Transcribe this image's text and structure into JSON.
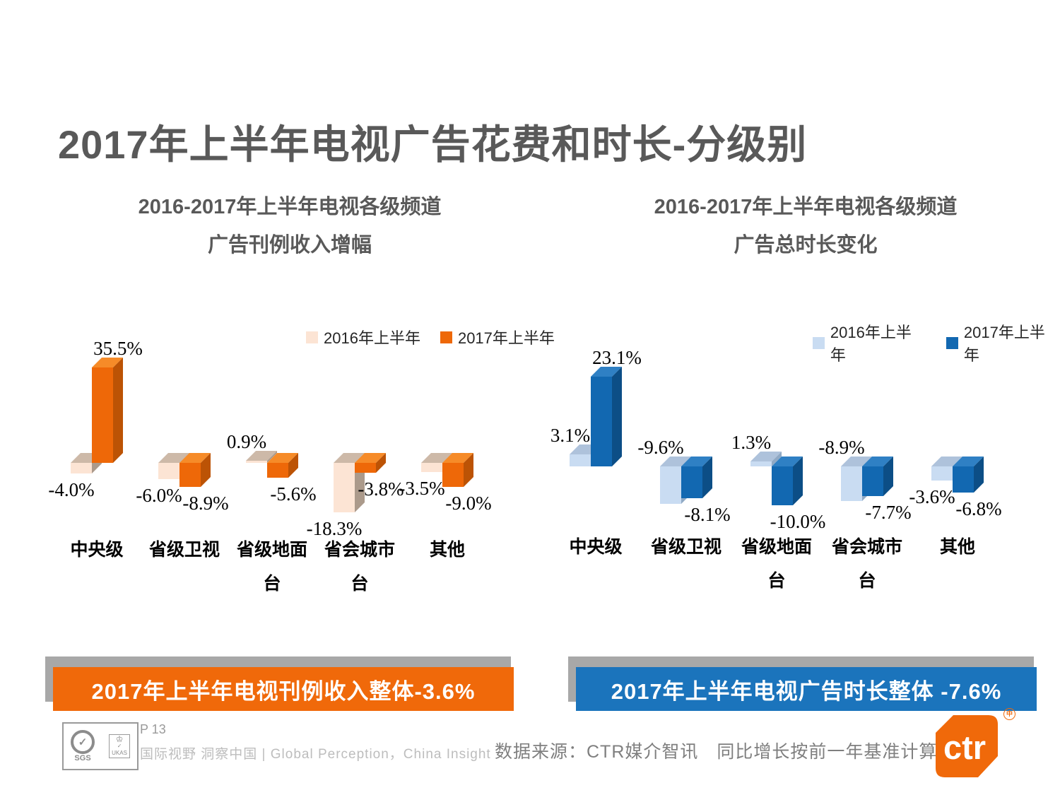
{
  "slide": {
    "title": "2017年上半年电视广告花费和时长-分级别",
    "page_label": "P 13",
    "tagline": "国际视野  洞察中国 | Global Perception，China Insight",
    "source_note": "数据来源：CTR媒介智讯　同比增长按前一年基准计算",
    "logo_text": "ctr",
    "logo_mark": "中",
    "cert": {
      "sgs": "SGS",
      "ukas": "UKAS",
      "sgs_check": "✓",
      "ukas_crown": "♔",
      "ukas_check": "✓"
    }
  },
  "colors": {
    "title_gray": "#595959",
    "banner_shadow": "#a8a8a8",
    "accent_orange": "#f0690a",
    "accent_blue": "#1b74bc",
    "logo_orange": "#f0690a"
  },
  "chart_data": [
    {
      "type": "bar",
      "title_line1": "2016-2017年上半年电视各级频道",
      "title_line2": "广告刊例收入增幅",
      "title": "2016-2017年上半年电视各级频道广告刊例收入增幅",
      "unit": "%",
      "grid": false,
      "axes_visible": false,
      "legend_position": "top-right",
      "style": "3d-clustered-column",
      "categories": [
        "中央级",
        "省级卫视",
        "省级地面台",
        "省会城市台",
        "其他"
      ],
      "categories_display": [
        [
          "中央级"
        ],
        [
          "省级卫视"
        ],
        [
          "省级地面",
          "台"
        ],
        [
          "省会城市",
          "台"
        ],
        [
          "其他"
        ]
      ],
      "series": [
        {
          "name": "2016年上半年",
          "values": [
            -4.0,
            -6.0,
            0.9,
            -18.3,
            -3.5
          ],
          "labels": [
            "-4.0%",
            "-6.0%",
            "0.9%",
            "-18.3%",
            "-3.5%"
          ],
          "label_side": [
            "below",
            "below",
            "above",
            "below",
            "below"
          ],
          "color_front": "#fce4d4",
          "color_top": "#cdb9a8",
          "color_side": "#ab9a8b"
        },
        {
          "name": "2017年上半年",
          "values": [
            35.5,
            -8.9,
            -5.6,
            -3.8,
            -9.0
          ],
          "labels": [
            "35.5%",
            "-8.9%",
            "-5.6%",
            "-3.8%",
            "-9.0%"
          ],
          "label_side": [
            "above",
            "below",
            "below",
            "below",
            "below"
          ],
          "color_front": "#ee6808",
          "color_top": "#f68b28",
          "color_side": "#bc5305"
        }
      ],
      "banner": "2017年上半年电视刊例收入整体-3.6%",
      "banner_color": "#f0690a"
    },
    {
      "type": "bar",
      "title_line1": "2016-2017年上半年电视各级频道",
      "title_line2": "广告总时长变化",
      "title": "2016-2017年上半年电视各级频道广告总时长变化",
      "unit": "%",
      "grid": false,
      "axes_visible": false,
      "legend_position": "top-right",
      "style": "3d-clustered-column",
      "categories": [
        "中央级",
        "省级卫视",
        "省级地面台",
        "省会城市台",
        "其他"
      ],
      "categories_display": [
        [
          "中央级"
        ],
        [
          "省级卫视"
        ],
        [
          "省级地面",
          "台"
        ],
        [
          "省会城市",
          "台"
        ],
        [
          "其他"
        ]
      ],
      "series": [
        {
          "name": "2016年上半年",
          "values": [
            3.1,
            -9.6,
            1.3,
            -8.9,
            -3.6
          ],
          "labels": [
            "3.1%",
            "-9.6%",
            "1.3%",
            "-8.9%",
            "-3.6%"
          ],
          "label_side": [
            "above",
            "above",
            "above",
            "above",
            "below"
          ],
          "color_front": "#c9dcf2",
          "color_top": "#aec2db",
          "color_side": "#90a9c4"
        },
        {
          "name": "2017年上半年",
          "values": [
            23.1,
            -8.1,
            -10.0,
            -7.7,
            -6.8
          ],
          "labels": [
            "23.1%",
            "-8.1%",
            "-10.0%",
            "-7.7%",
            "-6.8%"
          ],
          "label_side": [
            "above",
            "below",
            "below",
            "below",
            "below"
          ],
          "color_front": "#1268b1",
          "color_top": "#2f80c4",
          "color_side": "#0c4e86"
        }
      ],
      "banner": "2017年上半年电视广告时长整体 -7.6%",
      "banner_color": "#1b74bc"
    }
  ]
}
